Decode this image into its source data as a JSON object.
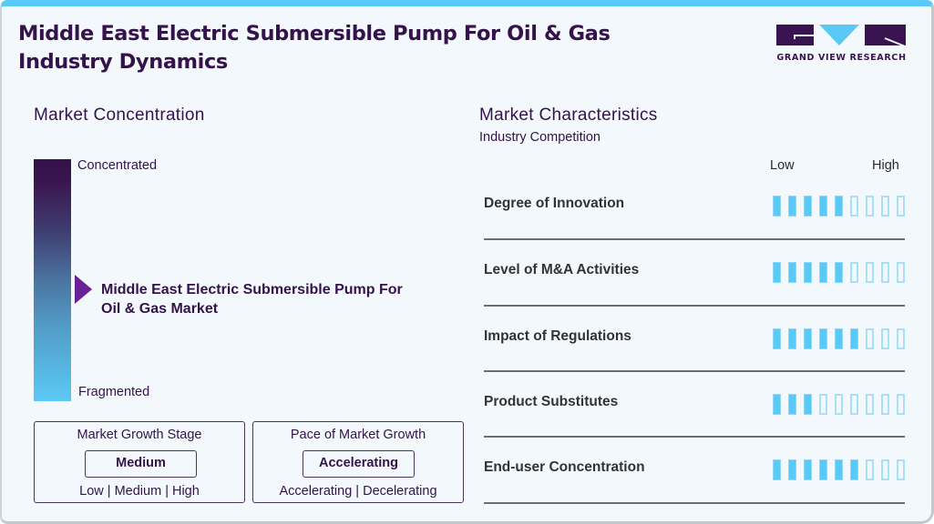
{
  "header": {
    "title": "Middle East Electric Submersible Pump For Oil & Gas Industry Dynamics",
    "logo_text": "GRAND VIEW RESEARCH"
  },
  "concentration": {
    "title": "Market Concentration",
    "top_label": "Concentrated",
    "bottom_label": "Fragmented",
    "market_name": "Middle East Electric Submersible Pump For Oil & Gas Market",
    "pointer_position_pct": 53
  },
  "growth_stage": {
    "title": "Market Growth Stage",
    "value": "Medium",
    "options": "Low  |  Medium  |  High"
  },
  "growth_pace": {
    "title": "Pace of Market Growth",
    "value": "Accelerating",
    "options": "Accelerating  |  Decelerating"
  },
  "characteristics": {
    "title": "Market Characteristics",
    "subtitle": "Industry Competition",
    "low_label": "Low",
    "high_label": "High",
    "max_level": 9,
    "rows": [
      {
        "label": "Degree of Innovation",
        "level": 5
      },
      {
        "label": "Level of M&A Activities",
        "level": 5
      },
      {
        "label": "Impact of Regulations",
        "level": 6
      },
      {
        "label": "Product Substitutes",
        "level": 3
      },
      {
        "label": "End-user Concentration",
        "level": 6
      }
    ]
  },
  "colors": {
    "brand_purple": "#34134a",
    "accent_blue": "#5bc9f5",
    "pointer_purple": "#6a2096"
  },
  "chart_data": {
    "type": "bar",
    "title": "Market Characteristics - Industry Competition",
    "categories": [
      "Degree of Innovation",
      "Level of M&A Activities",
      "Impact of Regulations",
      "Product Substitutes",
      "End-user Concentration"
    ],
    "values": [
      5,
      5,
      6,
      3,
      6
    ],
    "xlabel": "",
    "ylabel": "Level (Low to High)",
    "ylim": [
      0,
      9
    ],
    "grid": false,
    "legend": "none"
  }
}
